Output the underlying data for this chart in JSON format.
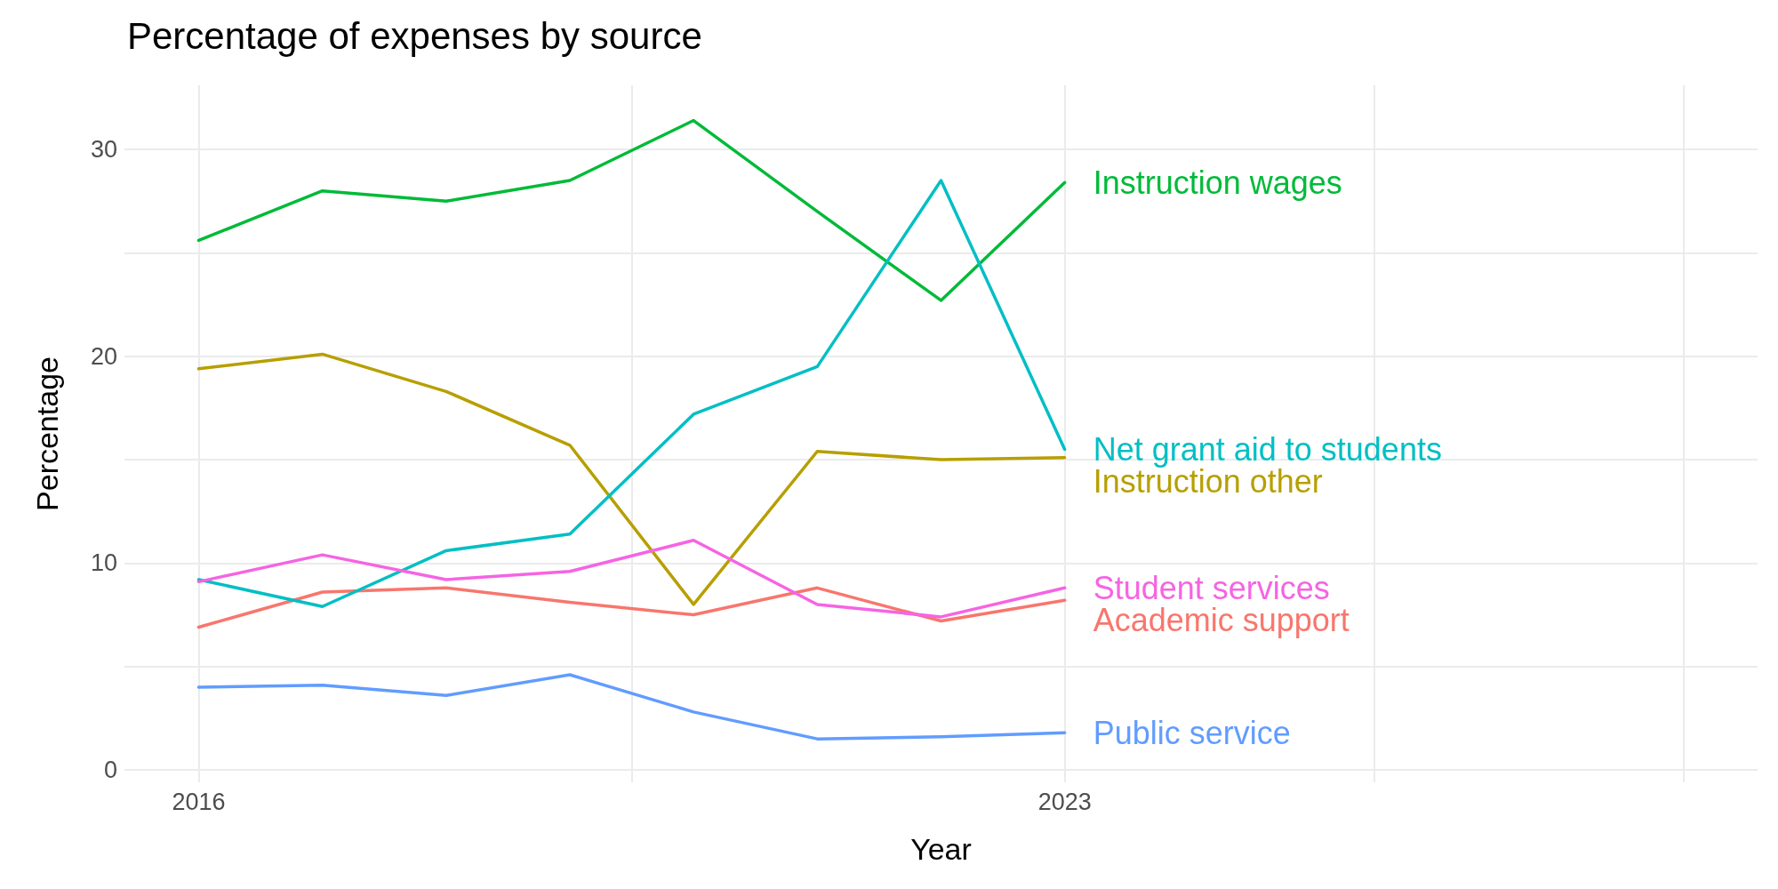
{
  "chart_data": {
    "type": "line",
    "title": "Percentage of expenses by source",
    "xlabel": "Year",
    "ylabel": "Percentage",
    "x": [
      2016,
      2017,
      2018,
      2019,
      2020,
      2021,
      2022,
      2023
    ],
    "series": [
      {
        "name": "Academic support",
        "color": "#f8766d",
        "values": [
          6.9,
          8.6,
          8.8,
          8.1,
          7.5,
          8.8,
          7.2,
          8.2
        ]
      },
      {
        "name": "Instruction other",
        "color": "#b79f00",
        "values": [
          19.4,
          20.1,
          18.3,
          15.7,
          8.0,
          15.4,
          15.0,
          15.1
        ]
      },
      {
        "name": "Instruction wages",
        "color": "#00ba38",
        "values": [
          25.6,
          28.0,
          27.5,
          28.5,
          31.4,
          27.0,
          22.7,
          28.4
        ]
      },
      {
        "name": "Net grant aid to students",
        "color": "#00bfc4",
        "values": [
          9.2,
          7.9,
          10.6,
          11.4,
          17.2,
          19.5,
          28.5,
          15.5
        ]
      },
      {
        "name": "Public service",
        "color": "#619cff",
        "values": [
          4.0,
          4.1,
          3.6,
          4.6,
          2.8,
          1.5,
          1.6,
          1.8
        ]
      },
      {
        "name": "Student services",
        "color": "#f564e3",
        "values": [
          9.1,
          10.4,
          9.2,
          9.6,
          11.1,
          8.0,
          7.4,
          8.8
        ]
      }
    ],
    "xlim": [
      2015.4,
      2028.6
    ],
    "xticks": [
      2016,
      {
        "value": 2019.5,
        "label": null
      },
      2023,
      {
        "value": 2025.5,
        "label": null
      },
      {
        "value": 2028,
        "label": null
      }
    ],
    "ylim": [
      -0.6,
      33.1
    ],
    "yticks": [
      0,
      {
        "value": 5,
        "label": null
      },
      10,
      {
        "value": 15,
        "label": null
      },
      20,
      {
        "value": 25,
        "label": null
      },
      30
    ],
    "grid": true,
    "legend": false,
    "marker": "none",
    "line_style": "solid"
  }
}
